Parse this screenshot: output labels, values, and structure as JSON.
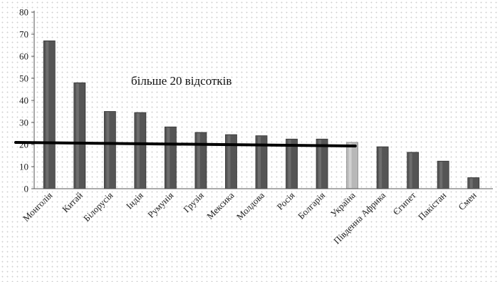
{
  "chart_data": {
    "type": "bar",
    "title": "",
    "xlabel": "",
    "ylabel": "",
    "ylim": [
      0,
      80
    ],
    "yticks": [
      0,
      10,
      20,
      30,
      40,
      50,
      60,
      70,
      80
    ],
    "grid": false,
    "categories": [
      "Монголія",
      "Китай",
      "Білорусія",
      "Індія",
      "Румунія",
      "Грузія",
      "Мексика",
      "Молдова",
      "Росія",
      "Болгарія",
      "Україна",
      "Південна Африка",
      "Єгипет",
      "Пакістан",
      "Смен"
    ],
    "values": [
      67,
      48,
      35,
      34.5,
      28,
      25.5,
      24.5,
      24,
      22.5,
      22.5,
      21,
      19,
      16.5,
      12.5,
      5
    ],
    "colors": {
      "bar": "#555555",
      "highlight_bar": "#b8b8b8",
      "highlight_category": "Україна",
      "threshold_line": "#000000"
    },
    "threshold": {
      "value": 20,
      "label": "більше 20 відсотків"
    }
  }
}
